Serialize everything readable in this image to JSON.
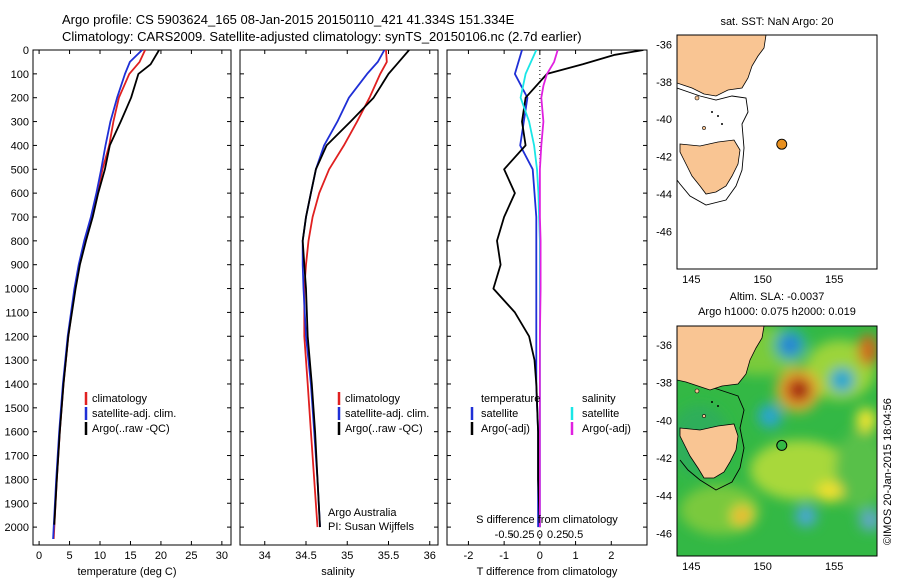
{
  "header": {
    "title_line1": "Argo profile: CS 5903624_165 08-Jan-2015 20150110_421 41.334S 151.334E",
    "title_line2": "Climatology: CARS2009. Satellite-adjusted climatology: synTS_20150106.nc (2.7d earlier)"
  },
  "map_titles": {
    "sst": "sat. SST: NaN Argo: 20",
    "sla_line1": "Altim. SLA: -0.0037",
    "sla_line2": "Argo h1000: 0.075 h2000: 0.019"
  },
  "credit": "©IMOS 20-Jan-2015 18:04:56",
  "colors": {
    "climatology": "#e02020",
    "satellite": "#1f2fd6",
    "argo": "#000000",
    "salinity_satellite": "#19e6e6",
    "salinity_argo": "#e020e0",
    "land": "#f9c593",
    "argo_marker": "#e8901f"
  },
  "chart_data": [
    {
      "type": "line",
      "xlabel": "temperature (deg C)",
      "ylabel": "",
      "xlim": [
        -1,
        31.5
      ],
      "ylim": [
        2075,
        0
      ],
      "xticks": [
        0,
        5,
        10,
        15,
        20,
        25,
        30
      ],
      "yticks": [
        0,
        100,
        200,
        300,
        400,
        500,
        600,
        700,
        800,
        900,
        1000,
        1100,
        1200,
        1300,
        1400,
        1500,
        1600,
        1700,
        1800,
        1900,
        2000
      ],
      "legend": [
        "climatology",
        "satellite-adj. clim.",
        "Argo(..raw -QC)"
      ],
      "series": [
        {
          "name": "climatology",
          "depth": [
            0,
            50,
            100,
            200,
            300,
            400,
            500,
            600,
            700,
            800,
            900,
            1000,
            1200,
            1400,
            1600,
            1800,
            2000,
            2050
          ],
          "values": [
            17.4,
            16.5,
            14.8,
            13.1,
            12.2,
            11.5,
            10.4,
            9.6,
            8.6,
            7.5,
            6.6,
            5.9,
            4.8,
            4.0,
            3.4,
            2.9,
            2.5,
            2.4
          ]
        },
        {
          "name": "satellite-adj. clim.",
          "depth": [
            0,
            50,
            100,
            200,
            300,
            400,
            500,
            600,
            700,
            800,
            900,
            1000,
            1200,
            1400,
            1600,
            1800,
            2000,
            2050
          ],
          "values": [
            16.9,
            14.9,
            14.1,
            12.8,
            11.7,
            10.9,
            10.2,
            9.4,
            8.5,
            7.4,
            6.5,
            5.8,
            4.7,
            3.9,
            3.3,
            2.8,
            2.4,
            2.3
          ]
        },
        {
          "name": "Argo(..raw -QC)",
          "depth": [
            0,
            60,
            100,
            200,
            300,
            400,
            500,
            600,
            700,
            800,
            900,
            1000,
            1200,
            1400,
            1600,
            1800,
            1990
          ],
          "values": [
            19.7,
            18.3,
            16.3,
            15.1,
            13.4,
            11.6,
            10.8,
            9.7,
            8.8,
            7.7,
            6.7,
            6.0,
            4.8,
            4.0,
            3.4,
            2.9,
            2.5
          ]
        }
      ]
    },
    {
      "type": "line",
      "xlabel": "salinity",
      "ylabel": "",
      "xlim": [
        33.7,
        36.1
      ],
      "ylim": [
        2075,
        0
      ],
      "xticks": [
        34,
        34.5,
        35,
        35.5,
        36
      ],
      "xtick_labels": [
        "34",
        "34.5",
        "35",
        "35.5",
        "36"
      ],
      "legend": [
        "climatology",
        "satellite-adj. clim.",
        "Argo(..raw -QC)"
      ],
      "annotation": [
        "Argo Australia",
        "PI: Susan Wijffels"
      ],
      "series": [
        {
          "name": "climatology",
          "depth": [
            0,
            50,
            100,
            200,
            300,
            400,
            500,
            600,
            700,
            800,
            900,
            1000,
            1200,
            1400,
            1600,
            1800,
            2000
          ],
          "values": [
            35.47,
            35.48,
            35.4,
            35.27,
            35.12,
            34.96,
            34.78,
            34.66,
            34.58,
            34.53,
            34.5,
            34.48,
            34.48,
            34.52,
            34.56,
            34.6,
            34.64
          ]
        },
        {
          "name": "satellite-adj. clim.",
          "depth": [
            0,
            50,
            100,
            200,
            300,
            400,
            500,
            600,
            700,
            800,
            900,
            1000,
            1200,
            1400,
            1600,
            1800,
            2000
          ],
          "values": [
            35.45,
            35.37,
            35.24,
            35.02,
            34.88,
            34.72,
            34.62,
            34.56,
            34.5,
            34.46,
            34.46,
            34.47,
            34.5,
            34.56,
            34.6,
            34.64,
            34.67
          ]
        },
        {
          "name": "Argo(..raw -QC)",
          "depth": [
            0,
            60,
            100,
            200,
            300,
            400,
            500,
            600,
            700,
            800,
            900,
            1000,
            1200,
            1400,
            1600,
            1800,
            2000
          ],
          "values": [
            35.75,
            35.6,
            35.5,
            35.32,
            35.04,
            34.75,
            34.62,
            34.56,
            34.5,
            34.46,
            34.48,
            34.5,
            34.52,
            34.57,
            34.61,
            34.64,
            34.67
          ]
        }
      ]
    },
    {
      "type": "line",
      "xlabel": "T difference from climatology",
      "xlabel_top": "S difference from climatology",
      "xlim": [
        -2.6,
        3.0
      ],
      "ylim": [
        2075,
        0
      ],
      "xticks": [
        -2,
        -1,
        0,
        1,
        2
      ],
      "s_ticks": [
        "-0.5",
        "-0.25",
        "0",
        "0.25",
        "0.5"
      ],
      "legend": [
        "temperature",
        "satellite",
        "Argo(-adj)",
        "salinity",
        "satellite",
        "Argo(-adj)"
      ],
      "series": [
        {
          "name": "T satellite",
          "depth": [
            0,
            100,
            200,
            300,
            400,
            500,
            600,
            700,
            800,
            900,
            1000,
            1200,
            1400,
            1600,
            1800,
            2000
          ],
          "values": [
            -0.5,
            -0.7,
            -0.35,
            -0.45,
            -0.55,
            -0.2,
            -0.15,
            -0.1,
            -0.1,
            -0.1,
            -0.1,
            -0.1,
            -0.1,
            -0.05,
            -0.05,
            -0.05
          ]
        },
        {
          "name": "T Argo(-adj)",
          "depth": [
            0,
            20,
            60,
            100,
            200,
            300,
            400,
            500,
            600,
            700,
            800,
            900,
            1000,
            1100,
            1200,
            1300,
            1400,
            1600,
            1800,
            2000
          ],
          "values": [
            2.9,
            2.1,
            1.2,
            0.2,
            -0.4,
            -0.5,
            -0.4,
            -1.0,
            -0.7,
            -1.0,
            -1.2,
            -1.1,
            -1.3,
            -0.7,
            -0.3,
            -0.15,
            -0.1,
            -0.05,
            -0.05,
            0.0
          ]
        },
        {
          "name": "S satellite",
          "depth": [
            0,
            100,
            200,
            300,
            400,
            500,
            600,
            700,
            800,
            900,
            1000,
            1200,
            1400,
            1600,
            1800,
            2000
          ],
          "values": [
            -0.05,
            -0.2,
            -0.27,
            -0.15,
            -0.08,
            -0.04,
            -0.02,
            -0.01,
            0.0,
            0.0,
            0.0,
            0.0,
            0.0,
            0.0,
            0.0,
            0.0
          ]
        },
        {
          "name": "S Argo(-adj)",
          "depth": [
            0,
            50,
            100,
            150,
            200,
            300,
            400,
            500,
            600,
            700,
            800,
            900,
            1000,
            1200,
            1400,
            1600,
            1800,
            2000
          ],
          "values": [
            0.25,
            0.2,
            0.1,
            0.05,
            0.02,
            0.05,
            0.02,
            0.0,
            0.0,
            0.0,
            0.01,
            0.01,
            0.01,
            0.0,
            0.0,
            0.0,
            0.0,
            0.0
          ]
        }
      ]
    },
    {
      "type": "heatmap",
      "title": "sat. SST: NaN Argo: 20",
      "xlim": [
        144,
        158
      ],
      "ylim": [
        -48,
        -35.5
      ],
      "xticks": [
        145,
        150,
        155
      ],
      "yticks": [
        -36,
        -38,
        -40,
        -42,
        -44,
        -46
      ],
      "argo_position": {
        "lon": 151.334,
        "lat": -41.334
      }
    },
    {
      "type": "heatmap",
      "title": "Altim. SLA: -0.0037 / Argo h1000: 0.075 h2000: 0.019",
      "xlim": [
        144,
        158
      ],
      "ylim": [
        -47.2,
        -35
      ],
      "xticks": [
        145,
        150,
        155
      ],
      "yticks": [
        -36,
        -38,
        -40,
        -42,
        -44,
        -46
      ],
      "argo_position": {
        "lon": 151.334,
        "lat": -41.334
      }
    }
  ]
}
